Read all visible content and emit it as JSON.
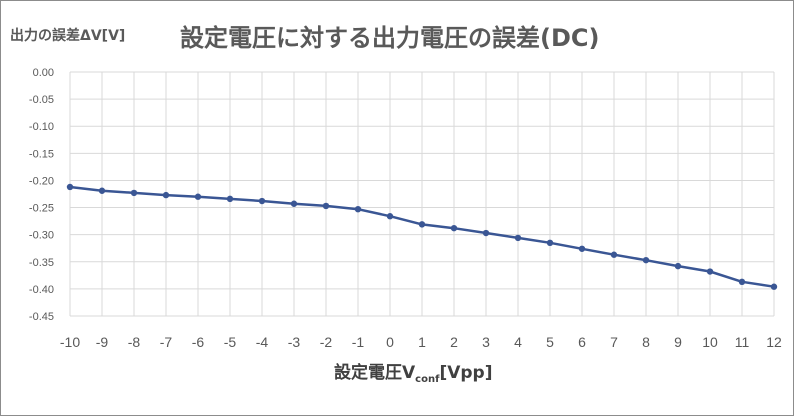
{
  "chart_data": {
    "type": "line",
    "title": "設定電圧に対する出力電圧の誤差(DC)",
    "ylabel": "出力の誤差ΔV[V]",
    "xlabel": {
      "main": "設定電圧V",
      "subscript": "conf",
      "unit": "[Vpp]"
    },
    "x": [
      -10,
      -9,
      -8,
      -7,
      -6,
      -5,
      -4,
      -3,
      -2,
      -1,
      0,
      1,
      2,
      3,
      4,
      5,
      6,
      7,
      8,
      9,
      10,
      11,
      12
    ],
    "x_tick_labels": [
      "-10",
      "-9",
      "-8",
      "-7",
      "-6",
      "-5",
      "-4",
      "-3",
      "-2",
      "-1",
      "0",
      "1",
      "2",
      "3",
      "4",
      "5",
      "6",
      "7",
      "8",
      "9",
      "10",
      "11",
      "12"
    ],
    "y_tick_labels": [
      "0.00",
      "-0.05",
      "-0.10",
      "-0.15",
      "-0.20",
      "-0.25",
      "-0.30",
      "-0.35",
      "-0.40",
      "-0.45"
    ],
    "series": [
      {
        "values": [
          -0.212,
          -0.219,
          -0.223,
          -0.227,
          -0.23,
          -0.234,
          -0.238,
          -0.243,
          -0.247,
          -0.253,
          -0.266,
          -0.281,
          -0.288,
          -0.297,
          -0.306,
          -0.315,
          -0.326,
          -0.337,
          -0.347,
          -0.358,
          -0.368,
          -0.387,
          -0.396
        ],
        "color": "#3a5694"
      }
    ],
    "xlim": [
      -10,
      12
    ],
    "ylim": [
      -0.45,
      0
    ],
    "grid": true,
    "colors": {
      "grid": "#d9d9d9",
      "line": "#3a5694",
      "text": "#595959",
      "frame": "#8c8c8c"
    }
  }
}
